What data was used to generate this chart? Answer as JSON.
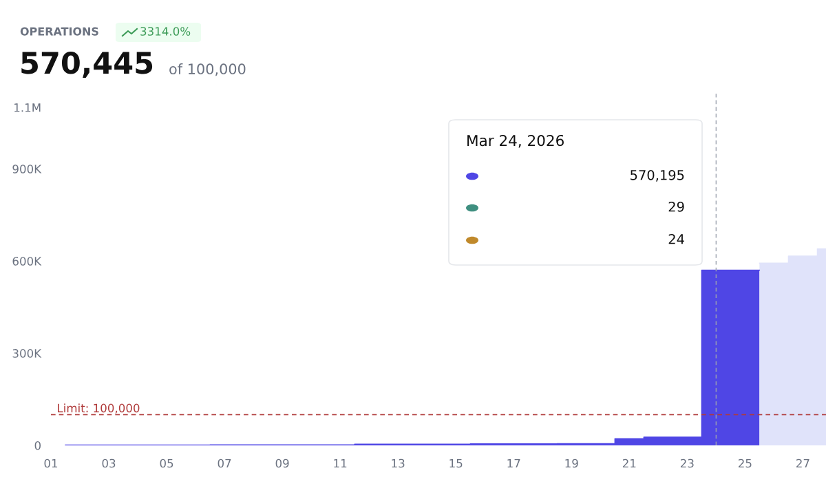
{
  "chart_data": {
    "type": "area",
    "title": "OPERATIONS",
    "annotations": [
      "3314.0%",
      "570,445",
      "of 100,000",
      "Mar 24, 2026",
      "570,195",
      "29",
      "24"
    ],
    "series": [
      {
        "color": "#4f46e5",
        "x": [
          1.5,
          3.5,
          3.5,
          6.5,
          6.5,
          11.5,
          11.5,
          15.5,
          15.5,
          18.5,
          18.5,
          20.5,
          20.5,
          21.5,
          21.5,
          23.5,
          23.5,
          25.5
        ],
        "values": [
          1000,
          1000,
          1000,
          1000,
          2000,
          2000,
          4000,
          4000,
          5000,
          5000,
          6000,
          6000,
          22000,
          22000,
          27000,
          27000,
          570195,
          570195
        ]
      },
      {
        "color": "#e0e3fa",
        "x": [
          25.5,
          26.5,
          26.5,
          27.5,
          27.5,
          27.8
        ],
        "values": [
          593000,
          593000,
          616000,
          616000,
          640000,
          640000
        ]
      }
    ],
    "xlim": [
      1,
      27.8
    ],
    "xticks": [
      {
        "value": 1,
        "label": "01"
      },
      {
        "value": 3,
        "label": "03"
      },
      {
        "value": 5,
        "label": "05"
      },
      {
        "value": 7,
        "label": "07"
      },
      {
        "value": 9,
        "label": "09"
      },
      {
        "value": 11,
        "label": "11"
      },
      {
        "value": 13,
        "label": "13"
      },
      {
        "value": 15,
        "label": "15"
      },
      {
        "value": 17,
        "label": "17"
      },
      {
        "value": 19,
        "label": "19"
      },
      {
        "value": 21,
        "label": "21"
      },
      {
        "value": 23,
        "label": "23"
      },
      {
        "value": 25,
        "label": "25"
      },
      {
        "value": 27,
        "label": "27"
      }
    ],
    "ylim": [
      0,
      1100000
    ],
    "yticks": [
      0,
      {
        "value": 300000,
        "label": "300K"
      },
      {
        "value": 600000,
        "label": "600K"
      },
      {
        "value": 900000,
        "label": "900K"
      },
      {
        "value": 1100000,
        "label": "1.1M"
      }
    ],
    "ref_lines": [
      {
        "axis": "y",
        "value": 100000,
        "label": "Limit: 100,000",
        "color": "#b03a3a",
        "line_style": "dashed"
      },
      {
        "axis": "x",
        "value": 24,
        "color": "#9ca3af",
        "line_style": "dashed"
      }
    ],
    "grid": false,
    "legend": false
  }
}
